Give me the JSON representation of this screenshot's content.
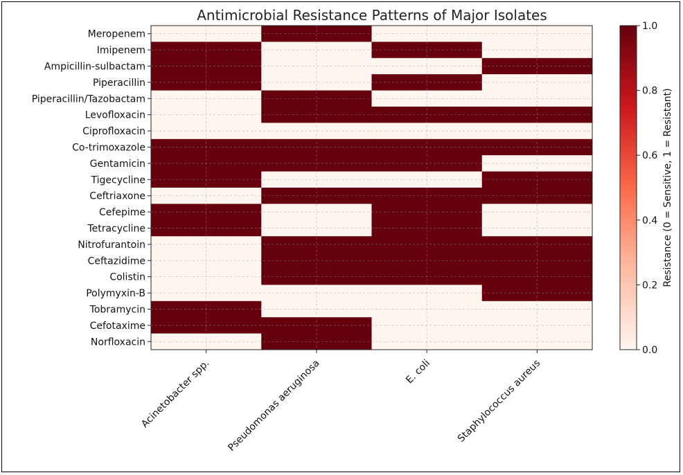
{
  "chart_data": {
    "type": "heatmap",
    "title": "Antimicrobial Resistance Patterns of Major Isolates",
    "x_categories": [
      "Acinetobacter spp.",
      "Pseudomonas aeruginosa",
      "E. coli",
      "Staphylococcus aureus"
    ],
    "y_categories": [
      "Meropenem",
      "Imipenem",
      "Ampicillin-sulbactam",
      "Piperacillin",
      "Piperacillin/Tazobactam",
      "Levofloxacin",
      "Ciprofloxacin",
      "Co-trimoxazole",
      "Gentamicin",
      "Tigecycline",
      "Ceftriaxone",
      "Cefepime",
      "Tetracycline",
      "Nitrofurantoin",
      "Ceftazidime",
      "Colistin",
      "Polymyxin-B",
      "Tobramycin",
      "Cefotaxime",
      "Norfloxacin"
    ],
    "values": [
      [
        0,
        1,
        0,
        0
      ],
      [
        1,
        0,
        1,
        0
      ],
      [
        1,
        0,
        0,
        1
      ],
      [
        1,
        0,
        1,
        0
      ],
      [
        0,
        1,
        0,
        0
      ],
      [
        0,
        1,
        1,
        1
      ],
      [
        0,
        0,
        0,
        0
      ],
      [
        1,
        1,
        1,
        1
      ],
      [
        1,
        1,
        1,
        0
      ],
      [
        1,
        0,
        0,
        1
      ],
      [
        0,
        1,
        1,
        1
      ],
      [
        1,
        0,
        1,
        0
      ],
      [
        1,
        0,
        1,
        0
      ],
      [
        0,
        1,
        1,
        1
      ],
      [
        0,
        1,
        1,
        1
      ],
      [
        0,
        1,
        1,
        1
      ],
      [
        0,
        0,
        0,
        1
      ],
      [
        1,
        0,
        0,
        0
      ],
      [
        1,
        1,
        0,
        0
      ],
      [
        0,
        1,
        0,
        0
      ]
    ],
    "colorbar": {
      "label": "Resistance (0 = Sensitive, 1 = Resistant)",
      "range": [
        0.0,
        1.0
      ],
      "ticks": [
        "0.0",
        "0.2",
        "0.4",
        "0.6",
        "0.8",
        "1.0"
      ],
      "colors": [
        "#fff5f0",
        "#fcbba1",
        "#fb6a4a",
        "#cb181d",
        "#67000d"
      ]
    },
    "grid": true
  }
}
